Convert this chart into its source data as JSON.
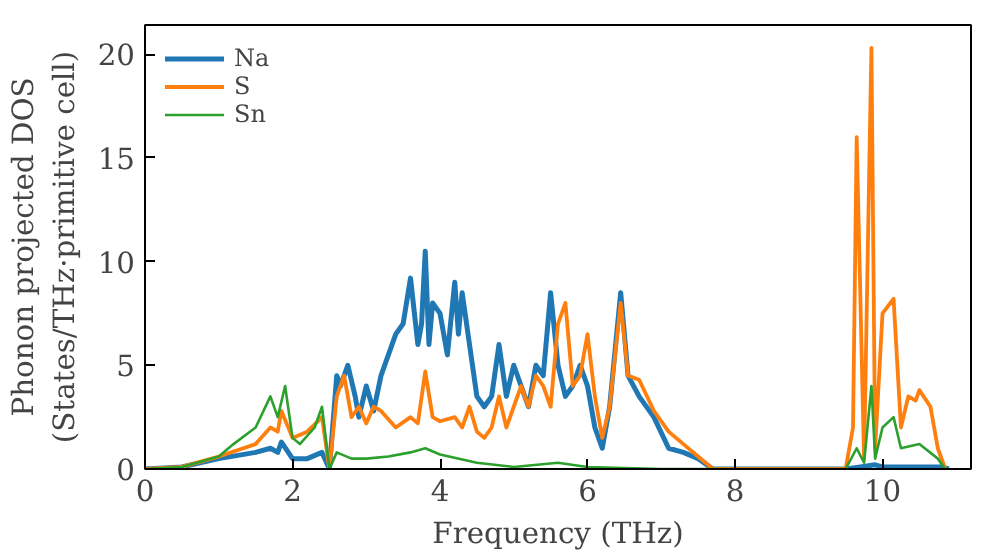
{
  "chart_data": {
    "type": "line",
    "xlabel": "Frequency (THz)",
    "ylabel": "Phonon projected DOS\n(States/THz·primitive cell)",
    "xlim": [
      0,
      11.2
    ],
    "ylim": [
      0,
      21.4
    ],
    "xticks": [
      0,
      2,
      4,
      6,
      8,
      10
    ],
    "yticks": [
      0,
      5,
      10,
      15,
      20
    ],
    "grid": false,
    "legend": "top left",
    "series": [
      {
        "name": "Na",
        "color": "#1f77b4",
        "x": [
          0,
          0.5,
          1.0,
          1.5,
          1.7,
          1.8,
          1.85,
          2.0,
          2.2,
          2.4,
          2.5,
          2.6,
          2.65,
          2.75,
          2.85,
          2.9,
          3.0,
          3.1,
          3.2,
          3.3,
          3.4,
          3.5,
          3.6,
          3.7,
          3.75,
          3.8,
          3.85,
          3.9,
          4.0,
          4.1,
          4.2,
          4.25,
          4.3,
          4.4,
          4.5,
          4.6,
          4.7,
          4.8,
          4.9,
          5.0,
          5.1,
          5.2,
          5.3,
          5.4,
          5.5,
          5.6,
          5.7,
          5.8,
          5.9,
          6.0,
          6.1,
          6.2,
          6.3,
          6.45,
          6.55,
          6.7,
          6.9,
          7.1,
          7.3,
          7.5,
          7.7,
          9.5,
          9.7,
          9.9,
          10.0,
          10.5,
          10.8,
          10.9
        ],
        "values": [
          0,
          0.1,
          0.5,
          0.8,
          1.0,
          0.8,
          1.3,
          0.5,
          0.5,
          0.8,
          0,
          4.5,
          4.0,
          5.0,
          3.5,
          2.5,
          4.0,
          2.8,
          4.5,
          5.5,
          6.5,
          7.0,
          9.2,
          6.0,
          7.0,
          10.5,
          6.0,
          8.0,
          7.5,
          5.5,
          9.0,
          6.5,
          8.5,
          6.0,
          3.5,
          3.0,
          3.5,
          6.0,
          3.5,
          5.0,
          4.0,
          3.0,
          5.0,
          4.5,
          8.5,
          5.0,
          3.5,
          4.0,
          5.0,
          4.0,
          2.0,
          1.0,
          3.0,
          8.5,
          4.5,
          3.5,
          2.5,
          1.0,
          0.8,
          0.5,
          0,
          0,
          0.1,
          0.2,
          0.1,
          0.1,
          0.1,
          0
        ]
      },
      {
        "name": "S",
        "color": "#ff7f0e",
        "x": [
          0,
          0.5,
          1.0,
          1.5,
          1.7,
          1.8,
          1.85,
          2.0,
          2.2,
          2.4,
          2.5,
          2.6,
          2.7,
          2.8,
          2.9,
          3.0,
          3.1,
          3.2,
          3.4,
          3.6,
          3.7,
          3.8,
          3.9,
          4.0,
          4.2,
          4.3,
          4.4,
          4.5,
          4.6,
          4.7,
          4.8,
          4.9,
          5.0,
          5.1,
          5.2,
          5.3,
          5.4,
          5.5,
          5.6,
          5.7,
          5.8,
          5.9,
          6.0,
          6.1,
          6.2,
          6.3,
          6.45,
          6.55,
          6.7,
          6.9,
          7.1,
          7.3,
          7.5,
          7.7,
          9.5,
          9.6,
          9.65,
          9.75,
          9.85,
          9.9,
          10.0,
          10.15,
          10.25,
          10.35,
          10.45,
          10.5,
          10.65,
          10.75,
          10.85
        ],
        "values": [
          0,
          0.1,
          0.6,
          1.2,
          2.0,
          1.8,
          2.8,
          1.5,
          1.8,
          2.5,
          0,
          3.5,
          4.5,
          2.5,
          3.0,
          2.2,
          3.0,
          2.8,
          2.0,
          2.5,
          2.2,
          4.7,
          2.5,
          2.3,
          2.5,
          2.0,
          3.0,
          1.8,
          1.5,
          2.0,
          3.5,
          2.0,
          3.0,
          4.0,
          3.0,
          4.5,
          4.0,
          3.0,
          7.0,
          8.0,
          4.0,
          4.5,
          6.5,
          3.5,
          1.5,
          3.0,
          8.0,
          4.5,
          4.3,
          2.8,
          1.8,
          1.2,
          0.6,
          0,
          0,
          2.0,
          16.0,
          0.5,
          20.3,
          1.0,
          7.5,
          8.2,
          2.0,
          3.5,
          3.3,
          3.8,
          3.0,
          1.0,
          0
        ]
      },
      {
        "name": "Sn",
        "color": "#2ca02c",
        "x": [
          0,
          0.5,
          1.0,
          1.2,
          1.5,
          1.7,
          1.8,
          1.9,
          2.0,
          2.1,
          2.3,
          2.4,
          2.5,
          2.6,
          2.8,
          3.0,
          3.3,
          3.6,
          3.8,
          4.0,
          4.5,
          5.0,
          5.6,
          6.0,
          7.0,
          9.5,
          9.65,
          9.75,
          9.85,
          9.9,
          10.0,
          10.15,
          10.25,
          10.5,
          10.75,
          10.85
        ],
        "values": [
          0,
          0.1,
          0.6,
          1.2,
          2.0,
          3.5,
          2.5,
          4.0,
          1.5,
          1.2,
          2.0,
          3.0,
          0,
          0.8,
          0.5,
          0.5,
          0.6,
          0.8,
          1.0,
          0.7,
          0.3,
          0.1,
          0.3,
          0.1,
          0,
          0,
          1.0,
          0.3,
          4.0,
          0.5,
          2.0,
          2.5,
          1.0,
          1.2,
          0.5,
          0
        ]
      }
    ]
  }
}
